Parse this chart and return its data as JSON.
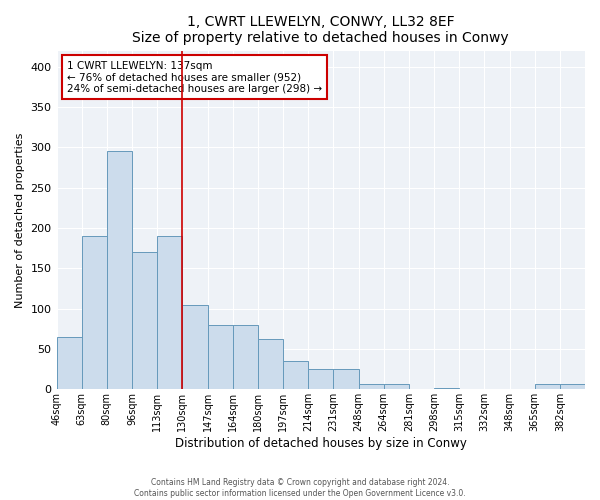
{
  "title": "1, CWRT LLEWELYN, CONWY, LL32 8EF",
  "subtitle": "Size of property relative to detached houses in Conwy",
  "xlabel": "Distribution of detached houses by size in Conwy",
  "ylabel": "Number of detached properties",
  "bar_color": "#ccdcec",
  "bar_edge_color": "#6699bb",
  "background_color": "#eef2f7",
  "annotation_text": "1 CWRT LLEWELYN: 137sqm\n← 76% of detached houses are smaller (952)\n24% of semi-detached houses are larger (298) →",
  "vline_x": 5,
  "vline_color": "#cc0000",
  "categories": [
    "46sqm",
    "63sqm",
    "80sqm",
    "96sqm",
    "113sqm",
    "130sqm",
    "147sqm",
    "164sqm",
    "180sqm",
    "197sqm",
    "214sqm",
    "231sqm",
    "248sqm",
    "264sqm",
    "281sqm",
    "298sqm",
    "315sqm",
    "332sqm",
    "348sqm",
    "365sqm",
    "382sqm"
  ],
  "values": [
    65,
    190,
    295,
    170,
    190,
    105,
    80,
    80,
    63,
    35,
    25,
    25,
    7,
    7,
    0,
    2,
    0,
    0,
    0,
    7,
    7
  ],
  "ylim": [
    0,
    420
  ],
  "yticks": [
    0,
    50,
    100,
    150,
    200,
    250,
    300,
    350,
    400
  ],
  "footer_line1": "Contains HM Land Registry data © Crown copyright and database right 2024.",
  "footer_line2": "Contains public sector information licensed under the Open Government Licence v3.0."
}
